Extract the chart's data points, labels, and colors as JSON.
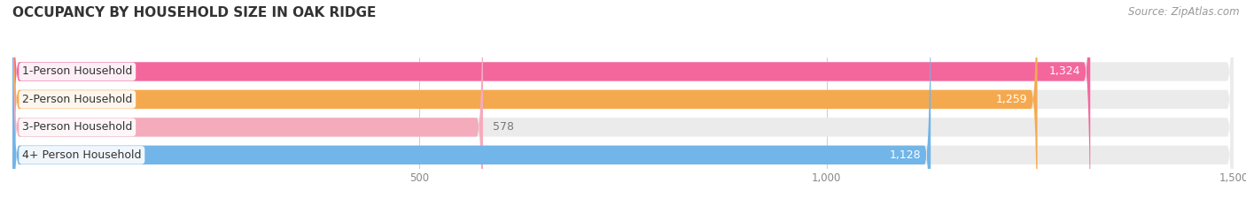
{
  "title": "OCCUPANCY BY HOUSEHOLD SIZE IN OAK RIDGE",
  "source": "Source: ZipAtlas.com",
  "categories": [
    "1-Person Household",
    "2-Person Household",
    "3-Person Household",
    "4+ Person Household"
  ],
  "values": [
    1324,
    1259,
    578,
    1128
  ],
  "bar_colors": [
    "#F4679D",
    "#F5A94E",
    "#F4ABBC",
    "#72B5E8"
  ],
  "bar_bg_color": "#EBEBEB",
  "value_label_colors": [
    "#ffffff",
    "#ffffff",
    "#888888",
    "#ffffff"
  ],
  "xlim": [
    0,
    1500
  ],
  "xticks": [
    500,
    1000,
    1500
  ],
  "xtick_labels": [
    "500",
    "1,000",
    "1,500"
  ],
  "title_fontsize": 11,
  "source_fontsize": 8.5,
  "bar_label_fontsize": 9,
  "tick_fontsize": 8.5,
  "cat_label_fontsize": 9,
  "background_color": "#ffffff",
  "bar_height": 0.68,
  "bar_gap": 0.32
}
